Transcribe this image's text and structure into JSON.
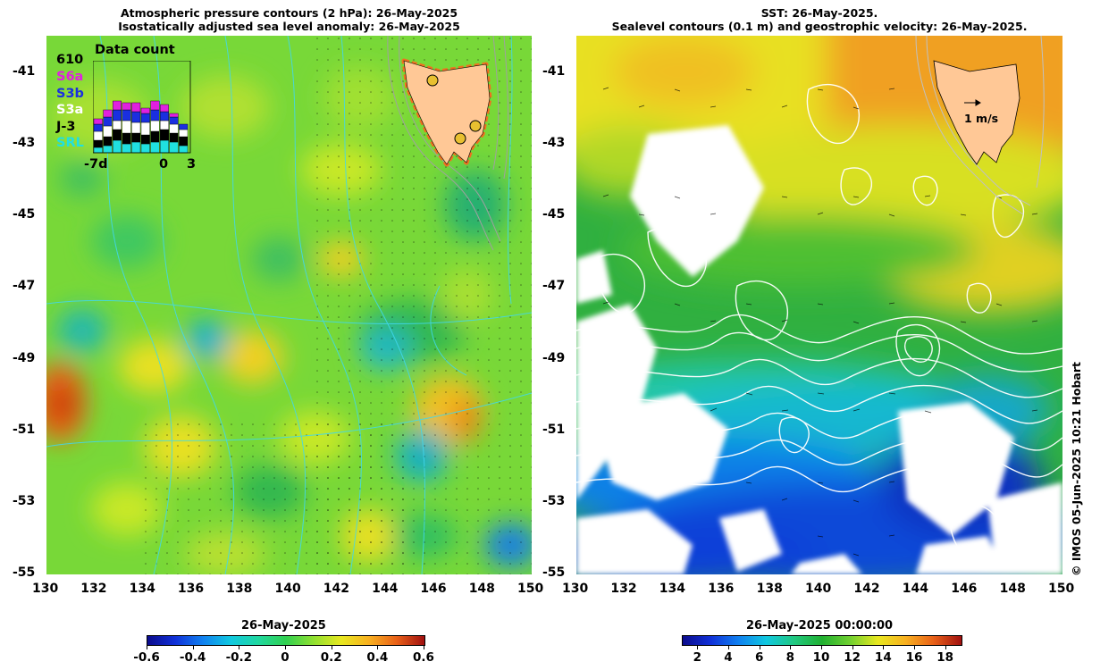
{
  "left_panel": {
    "title_line1": "Atmospheric pressure contours (2 hPa): 26-May-2025",
    "title_line2": "Isostatically adjusted sea level anomaly: 26-May-2025",
    "inset": {
      "title": "Data count",
      "count": "610",
      "missions": [
        {
          "name": "S6a",
          "color": "#e020e0"
        },
        {
          "name": "S3b",
          "color": "#1a2fe0"
        },
        {
          "name": "S3a",
          "color": "#ffffff"
        },
        {
          "name": "J-3",
          "color": "#000000"
        },
        {
          "name": "SRL",
          "color": "#20e0e0"
        }
      ],
      "axis_labels": [
        "-7d",
        "0",
        "3"
      ]
    },
    "colorbar": {
      "title": "26-May-2025",
      "ticks": [
        "-0.6",
        "-0.4",
        "-0.2",
        "0",
        "0.2",
        "0.4",
        "0.6"
      ],
      "range": [
        -0.6,
        0.6
      ],
      "colors": [
        "#0b0b8c",
        "#1030d8",
        "#1080f0",
        "#10c8e0",
        "#20d8a0",
        "#30d050",
        "#90e030",
        "#e8e820",
        "#f8b020",
        "#e86018",
        "#a01010"
      ]
    }
  },
  "right_panel": {
    "title_line1": "SST: 26-May-2025.",
    "title_line2": "Sealevel contours (0.1 m) and geostrophic velocity: 26-May-2025.",
    "velocity_scale_label": "1 m/s",
    "colorbar": {
      "title": "26-May-2025 00:00:00",
      "ticks": [
        "2",
        "4",
        "6",
        "8",
        "10",
        "12",
        "14",
        "16",
        "18"
      ],
      "range": [
        1,
        19
      ],
      "colors": [
        "#0b0b8c",
        "#1030d8",
        "#1080f0",
        "#10c8e0",
        "#20c880",
        "#20b030",
        "#70d030",
        "#e8e820",
        "#f8b020",
        "#e86018",
        "#a01010"
      ]
    }
  },
  "axes": {
    "lat_ticks": [
      "-41",
      "-43",
      "-45",
      "-47",
      "-49",
      "-51",
      "-53",
      "-55"
    ],
    "lon_ticks": [
      "130",
      "132",
      "134",
      "136",
      "138",
      "140",
      "142",
      "144",
      "146",
      "148",
      "150"
    ],
    "lon_range": [
      130,
      150
    ],
    "lat_range": [
      -55,
      -40
    ]
  },
  "credit": "© IMOS 05-Jun-2025 10:21 Hobart"
}
